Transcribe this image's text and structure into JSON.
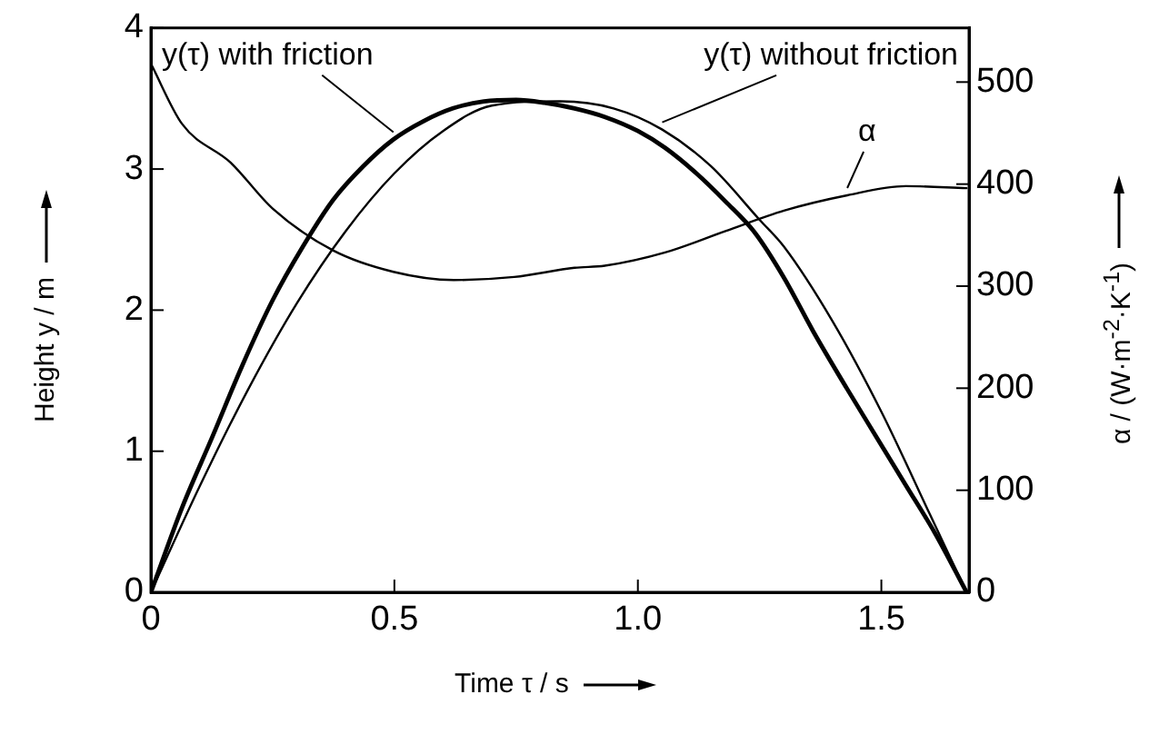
{
  "chart_data": {
    "type": "line",
    "xlabel": "Time  τ / s",
    "ylabel": "Height  y / m",
    "y2label": "α / (W·m$^{-2}$·K$^{-1}$)",
    "xlim": [
      0,
      1.68
    ],
    "xticks": [
      0,
      0.5,
      {
        "value": 1,
        "label": "1.0"
      },
      1.5
    ],
    "ylim": [
      0,
      4
    ],
    "yticks": [
      0,
      1,
      2,
      3,
      4
    ],
    "y2lim": [
      0,
      553
    ],
    "y2ticks": [
      0,
      100,
      200,
      300,
      400,
      500
    ],
    "grid": false,
    "legend": false,
    "marker": "none",
    "series": [
      {
        "name": "y(τ) with friction",
        "color": "#000000",
        "x": [
          0,
          0.064,
          0.126,
          0.188,
          0.25,
          0.312,
          0.374,
          0.436,
          0.498,
          0.56,
          0.62,
          0.684,
          0.75,
          0.808,
          0.87,
          0.932,
          1.0,
          1.056,
          1.12,
          1.18,
          1.24,
          1.3,
          1.36,
          1.43,
          1.49,
          1.55,
          1.61,
          1.675
        ],
        "values": [
          0,
          0.6,
          1.1,
          1.61,
          2.07,
          2.45,
          2.78,
          3.02,
          3.21,
          3.34,
          3.43,
          3.48,
          3.49,
          3.47,
          3.43,
          3.37,
          3.27,
          3.15,
          2.97,
          2.77,
          2.55,
          2.23,
          1.85,
          1.44,
          1.1,
          0.76,
          0.42,
          0
        ]
      },
      {
        "name": "y(τ) without friction",
        "color": "#000000",
        "x": [
          0,
          0.1,
          0.2,
          0.3,
          0.4,
          0.5,
          0.6,
          0.7,
          0.84,
          0.95,
          1.05,
          1.15,
          1.25,
          1.3,
          1.4,
          1.5,
          1.6,
          1.675
        ],
        "values": [
          0,
          0.75,
          1.44,
          2.05,
          2.56,
          2.97,
          3.27,
          3.45,
          3.48,
          3.43,
          3.28,
          3.02,
          2.64,
          2.45,
          1.92,
          1.28,
          0.55,
          0
        ]
      },
      {
        "name": "α",
        "color": "#000000",
        "axis": "y2",
        "x": [
          0,
          0.064,
          0.164,
          0.25,
          0.374,
          0.498,
          0.622,
          0.746,
          0.87,
          0.932,
          1.056,
          1.18,
          1.3,
          1.43,
          1.55,
          1.675
        ],
        "values": [
          518,
          459,
          421,
          376,
          335,
          314,
          306,
          309,
          318,
          320,
          333,
          354,
          374,
          389,
          398,
          396
        ]
      }
    ]
  }
}
